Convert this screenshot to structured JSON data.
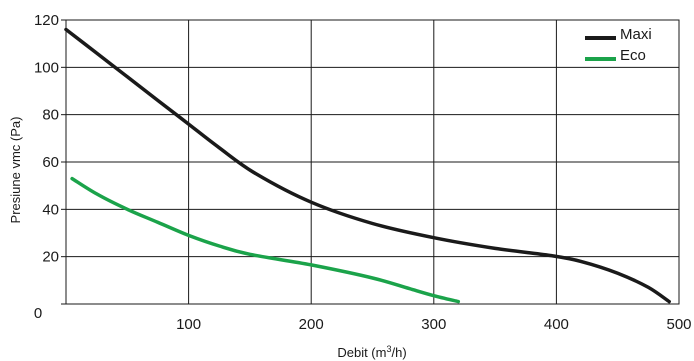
{
  "chart_data": {
    "type": "line",
    "xlabel": {
      "prefix": "Debit (m",
      "sup": "3",
      "suffix": "/h)"
    },
    "ylabel": "Presiune vmc (Pa)",
    "xlim": [
      0,
      500
    ],
    "ylim": [
      0,
      120
    ],
    "x_ticks": [
      100,
      200,
      300,
      400,
      500
    ],
    "y_ticks": [
      0,
      20,
      40,
      60,
      80,
      100,
      120
    ],
    "origin_label": "0",
    "grid": true,
    "legend_position": "top-right",
    "series": [
      {
        "name": "Maxi",
        "color": "#1a1a1a",
        "points": [
          [
            0,
            116
          ],
          [
            25,
            106
          ],
          [
            50,
            96
          ],
          [
            75,
            86
          ],
          [
            100,
            76
          ],
          [
            125,
            66
          ],
          [
            155,
            55
          ],
          [
            200,
            43
          ],
          [
            250,
            34
          ],
          [
            300,
            28
          ],
          [
            350,
            23.5
          ],
          [
            395,
            20.5
          ],
          [
            420,
            18
          ],
          [
            450,
            13
          ],
          [
            475,
            7
          ],
          [
            492,
            1
          ]
        ]
      },
      {
        "name": "Eco",
        "color": "#1ba34a",
        "points": [
          [
            5,
            53
          ],
          [
            25,
            46.5
          ],
          [
            50,
            40
          ],
          [
            75,
            34.5
          ],
          [
            100,
            29
          ],
          [
            125,
            24.5
          ],
          [
            150,
            21
          ],
          [
            200,
            16.5
          ],
          [
            250,
            11
          ],
          [
            280,
            6.5
          ],
          [
            300,
            3.5
          ],
          [
            320,
            1
          ]
        ]
      }
    ]
  }
}
